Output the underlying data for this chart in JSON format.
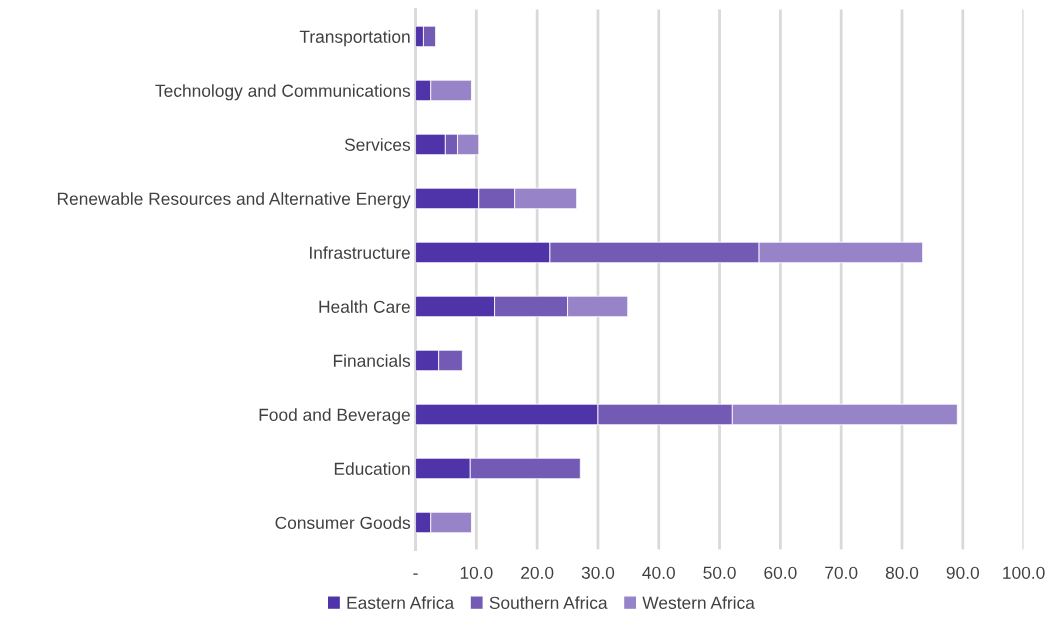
{
  "chart_data": {
    "type": "bar",
    "orientation": "horizontal",
    "stacked": true,
    "categories": [
      "Transportation",
      "Technology and Communications",
      "Services",
      "Renewable Resources and Alternative Energy",
      "Infrastructure",
      "Health Care",
      "Financials",
      "Food and Beverage",
      "Education",
      "Consumer Goods"
    ],
    "series": [
      {
        "name": "Eastern Africa",
        "color": "#4f33a8",
        "values": [
          1.3,
          2.5,
          4.9,
          10.4,
          22.1,
          13.0,
          3.8,
          30.0,
          9.0,
          2.5
        ]
      },
      {
        "name": "Southern Africa",
        "color": "#735bb5",
        "values": [
          2.0,
          null,
          2.0,
          5.9,
          34.4,
          12.0,
          3.9,
          22.1,
          18.1,
          null
        ]
      },
      {
        "name": "Western Africa",
        "color": "#9783c7",
        "values": [
          null,
          6.7,
          3.5,
          10.2,
          26.9,
          9.9,
          null,
          37.0,
          null,
          6.7
        ]
      }
    ],
    "xlim": [
      0,
      100
    ],
    "xticks": [
      {
        "value": 0,
        "label": "-"
      },
      {
        "value": 10,
        "label": "10.0"
      },
      {
        "value": 20,
        "label": "20.0"
      },
      {
        "value": 30,
        "label": "30.0"
      },
      {
        "value": 40,
        "label": "40.0"
      },
      {
        "value": 50,
        "label": "50.0"
      },
      {
        "value": 60,
        "label": "60.0"
      },
      {
        "value": 70,
        "label": "70.0"
      },
      {
        "value": 80,
        "label": "80.0"
      },
      {
        "value": 90,
        "label": "90.0"
      },
      {
        "value": 100,
        "label": "100.0"
      }
    ],
    "grid": "x",
    "legend": "bottom"
  }
}
